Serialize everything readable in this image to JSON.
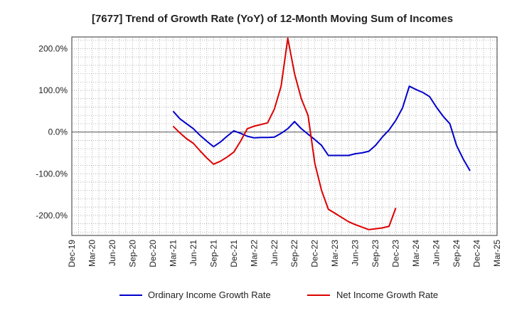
{
  "chart_data": {
    "type": "line",
    "title": "[7677]  Trend of Growth Rate (YoY) of 12-Month Moving Sum of Incomes",
    "xlabel": "",
    "ylabel": "",
    "x_tick_labels": [
      "Dec-19",
      "Mar-20",
      "Jun-20",
      "Sep-20",
      "Dec-20",
      "Mar-21",
      "Jun-21",
      "Sep-21",
      "Dec-21",
      "Mar-22",
      "Jun-22",
      "Sep-22",
      "Dec-22",
      "Mar-23",
      "Jun-23",
      "Sep-23",
      "Dec-23",
      "Mar-24",
      "Jun-24",
      "Sep-24",
      "Dec-24",
      "Mar-25"
    ],
    "y_tick_labels": [
      "200.0%",
      "100.0%",
      "0.0%",
      "-100.0%",
      "-200.0%"
    ],
    "y_ticks": [
      200,
      100,
      0,
      -100,
      -200
    ],
    "ylim": [
      -248,
      228
    ],
    "x_months_range": [
      0,
      63
    ],
    "grid": true,
    "legend_position": "bottom",
    "series": [
      {
        "name": "Ordinary Income Growth Rate",
        "color": "#0000cc",
        "x": [
          15,
          16,
          17,
          18,
          19,
          20,
          21,
          22,
          23,
          24,
          25,
          26,
          27,
          28,
          29,
          30,
          31,
          32,
          33,
          34,
          35,
          36,
          37,
          38,
          39,
          40,
          41,
          42,
          43,
          44,
          45,
          46,
          47,
          48,
          49,
          50,
          51,
          52,
          53,
          54,
          55,
          56,
          57,
          58,
          59,
          60
        ],
        "values": [
          50,
          32,
          20,
          8,
          -8,
          -22,
          -35,
          -24,
          -10,
          3,
          -3,
          -10,
          -14,
          -13,
          -13,
          -12,
          -3,
          8,
          25,
          8,
          -5,
          -18,
          -32,
          -56,
          -56,
          -56,
          -56,
          -52,
          -50,
          -46,
          -32,
          -12,
          5,
          28,
          58,
          110,
          102,
          95,
          85,
          60,
          38,
          20,
          -32,
          -65,
          -93,
          null
        ]
      },
      {
        "name": "Net Income Growth Rate",
        "color": "#dd0000",
        "x": [
          15,
          16,
          17,
          18,
          19,
          20,
          21,
          22,
          23,
          24,
          25,
          26,
          27,
          28,
          29,
          30,
          31,
          32,
          33,
          34,
          35,
          36,
          37,
          38,
          39,
          40,
          41,
          42,
          43,
          44,
          45,
          46,
          47,
          48
        ],
        "values": [
          14,
          -2,
          -16,
          -27,
          -45,
          -62,
          -77,
          -70,
          -60,
          -48,
          -22,
          8,
          14,
          18,
          22,
          55,
          110,
          225,
          140,
          80,
          40,
          -75,
          -140,
          -185,
          -195,
          -205,
          -215,
          -222,
          -228,
          -234,
          -232,
          -230,
          -226,
          -182
        ]
      }
    ]
  }
}
